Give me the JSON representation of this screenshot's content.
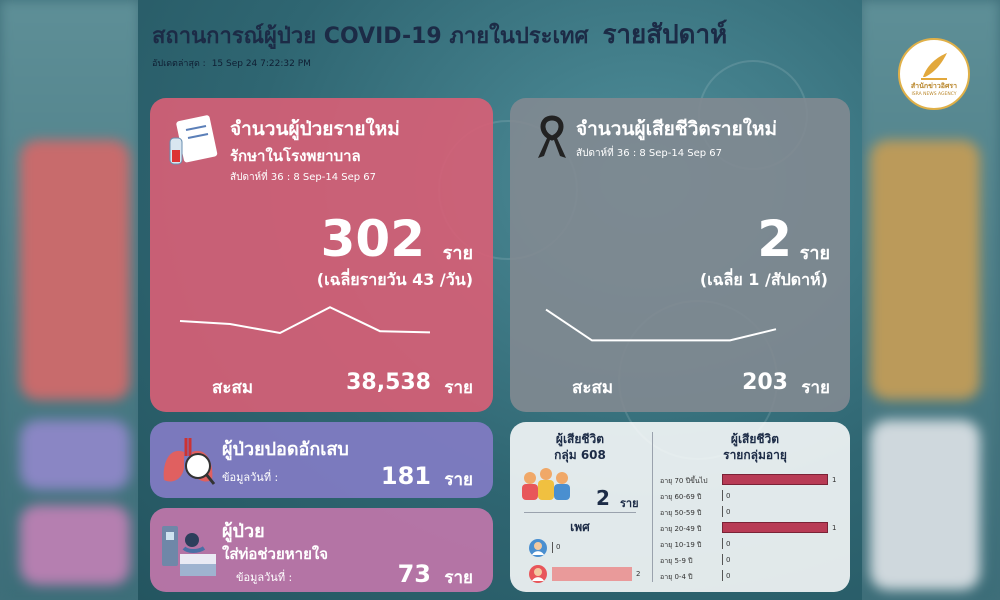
{
  "header": {
    "title": "สถานการณ์ผู้ป่วย COVID-19 ภายในประเทศ",
    "title_emphasis": "รายสัปดาห์",
    "updated_label": "อัปเดตล่าสุด :",
    "updated_value": "15 Sep 24 7:22:32 PM"
  },
  "new_cases": {
    "title": "จำนวนผู้ป่วยรายใหม่",
    "subtitle": "รักษาในโรงพยาบาล",
    "week": "สัปดาห์ที่ 36 : 8 Sep-14 Sep 67",
    "value": "302",
    "unit": "ราย",
    "average": "(เฉลี่ยรายวัน 43 /วัน)",
    "cumulative_label": "สะสม",
    "cumulative_value": "38,538",
    "cumulative_unit": "ราย",
    "trend": [
      0.55,
      0.5,
      0.35,
      0.78,
      0.38,
      0.36
    ]
  },
  "new_deaths": {
    "title": "จำนวนผู้เสียชีวิตรายใหม่",
    "week": "สัปดาห์ที่ 36 : 8 Sep-14 Sep 67",
    "value": "2",
    "unit": "ราย",
    "average": "(เฉลี่ย 1 /สัปดาห์)",
    "cumulative_label": "สะสม",
    "cumulative_value": "203",
    "cumulative_unit": "ราย",
    "trend": [
      0.9,
      0.35,
      0.35,
      0.35,
      0.35,
      0.55
    ]
  },
  "pneumonia": {
    "title": "ผู้ป่วยปอดอักเสบ",
    "sub": "ข้อมูลวันที่ :",
    "value": "181",
    "unit": "ราย"
  },
  "ventilator": {
    "title": "ผู้ป่วย",
    "title2": "ใส่ท่อช่วยหายใจ",
    "sub": "ข้อมูลวันที่ :",
    "value": "73",
    "unit": "ราย"
  },
  "deaths_608": {
    "title": "ผู้เสียชีวิต",
    "title2": "กลุ่ม 608",
    "value": "2",
    "unit": "ราย",
    "gender_label": "เพศ",
    "male_value": "0",
    "female_value": "2",
    "female_fraction": 1.0
  },
  "deaths_age": {
    "title": "ผู้เสียชีวิต",
    "title2": "รายกลุ่มอายุ",
    "groups": [
      {
        "label": "อายุ 70 ปีขึ้นไป",
        "value": 1,
        "text": "1"
      },
      {
        "label": "อายุ 60-69 ปี",
        "value": 0,
        "text": "0"
      },
      {
        "label": "อายุ 50-59 ปี",
        "value": 0,
        "text": "0"
      },
      {
        "label": "อายุ 20-49 ปี",
        "value": 1,
        "text": "1"
      },
      {
        "label": "อายุ 10-19 ปี",
        "value": 0,
        "text": "0"
      },
      {
        "label": "อายุ 5-9 ปี",
        "value": 0,
        "text": "0"
      },
      {
        "label": "อายุ 0-4 ปี",
        "value": 0,
        "text": "0"
      }
    ],
    "max": 1
  },
  "logo": {
    "name": "สำนักข่าวอิศรา",
    "name_en": "ISRA NEWS AGENCY"
  },
  "colors": {
    "title": "#1c2b46",
    "red_card": "#d65f76",
    "bar": "#b83b55"
  }
}
